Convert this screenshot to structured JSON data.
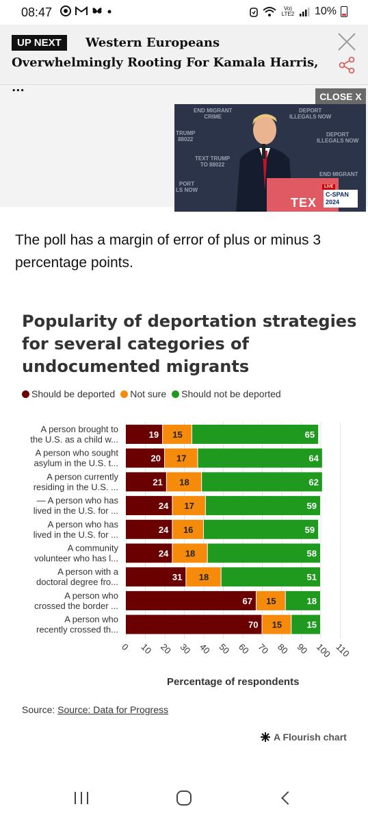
{
  "status_bar": {
    "time": "08:47",
    "left_icons": [
      "chrome-icon",
      "gmail-icon",
      "butterfly-icon",
      "dot-icon"
    ],
    "network_label": "Vo) LTE2",
    "battery": "10%"
  },
  "up_next": {
    "badge": "UP NEXT",
    "title": "Western Europeans Overwhelmingly Rooting For Kamala Harris,",
    "ellipsis": "..."
  },
  "video": {
    "close_label": "CLOSE X",
    "live_label": "LIVE",
    "network": "C-SPAN 2024"
  },
  "article": {
    "paragraph": "The poll has a margin of error of plus or minus 3 percentage points."
  },
  "chart_data": {
    "type": "bar",
    "stacked": true,
    "orientation": "horizontal",
    "title": "Popularity of deportation strategies for several categories of undocumented migrants",
    "xlabel": "Percentage of respondents",
    "xlim": [
      0,
      110
    ],
    "xticks": [
      0,
      10,
      20,
      30,
      40,
      50,
      60,
      70,
      80,
      90,
      100,
      110
    ],
    "legend_position": "top",
    "categories": [
      [
        "A person brought to",
        "the U.S. as a child w..."
      ],
      [
        "A person who sought",
        "asylum in the U.S. t..."
      ],
      [
        "A person currently",
        "residing in the U.S. ..."
      ],
      [
        "— A person who has",
        "lived in the U.S. for ..."
      ],
      [
        "A person who has",
        "lived in the U.S. for ..."
      ],
      [
        "A community",
        "volunteer who has l..."
      ],
      [
        "A person with a",
        "doctoral degree fro..."
      ],
      [
        "A person who",
        "crossed the border ..."
      ],
      [
        "A person who",
        "recently crossed th..."
      ]
    ],
    "series": [
      {
        "name": "Should be deported",
        "color": "#6b0000",
        "values": [
          19,
          20,
          21,
          24,
          24,
          24,
          31,
          67,
          70
        ]
      },
      {
        "name": "Not sure",
        "color": "#f58a0b",
        "values": [
          15,
          17,
          18,
          17,
          16,
          18,
          18,
          15,
          15
        ]
      },
      {
        "name": "Should not be deported",
        "color": "#1f9a1f",
        "values": [
          65,
          64,
          62,
          59,
          59,
          58,
          51,
          18,
          15
        ]
      }
    ]
  },
  "source": {
    "prefix": "Source: ",
    "link": "Source: Data for Progress"
  },
  "flourish": {
    "label": "A Flourish chart"
  }
}
